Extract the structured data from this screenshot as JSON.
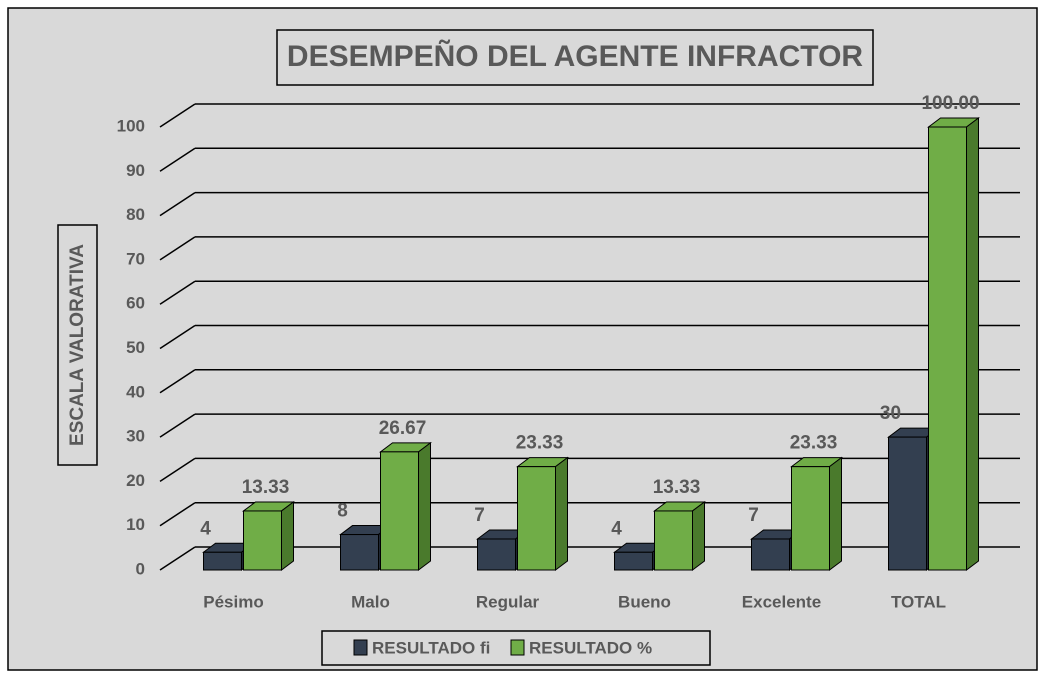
{
  "chart_data": {
    "type": "bar3d",
    "title": "DESEMPEÑO DEL AGENTE INFRACTOR",
    "y_label": "ESCALA VALORATIVA",
    "categories": [
      "Pésimo",
      "Malo",
      "Regular",
      "Bueno",
      "Excelente",
      "TOTAL"
    ],
    "series": [
      {
        "name": "RESULTADO fi",
        "color": "#333f50",
        "side_color": "#1f2733",
        "values": [
          4,
          8,
          7,
          4,
          7,
          30
        ]
      },
      {
        "name": "RESULTADO %",
        "color": "#70ad47",
        "side_color": "#4a7a2c",
        "values": [
          13.33,
          26.67,
          23.33,
          13.33,
          23.33,
          100
        ],
        "value_labels": [
          "13.33",
          "26.67",
          "23.33",
          "13.33",
          "23.33",
          "100.00"
        ]
      }
    ],
    "ylim": [
      0,
      100
    ],
    "yticks": [
      0,
      10,
      20,
      30,
      40,
      50,
      60,
      70,
      80,
      90,
      100
    ],
    "grid": true,
    "legend": "bottom"
  }
}
